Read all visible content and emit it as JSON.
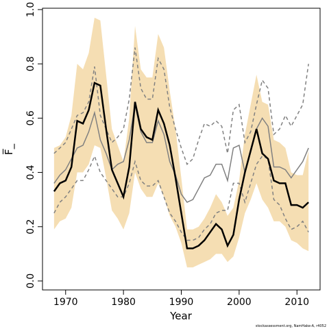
{
  "chart_data": {
    "type": "line",
    "x_label": "Year",
    "y_label": "F̅_",
    "footnote": "stockassessment.org, NamHake-A, r4052",
    "x": [
      1968,
      1969,
      1970,
      1971,
      1972,
      1973,
      1974,
      1975,
      1976,
      1977,
      1978,
      1979,
      1980,
      1981,
      1982,
      1983,
      1984,
      1985,
      1986,
      1987,
      1988,
      1989,
      1990,
      1991,
      1992,
      1993,
      1994,
      1995,
      1996,
      1997,
      1998,
      1999,
      2000,
      2001,
      2002,
      2003,
      2004,
      2005,
      2006,
      2007,
      2008,
      2009,
      2010,
      2011,
      2012
    ],
    "band": {
      "color": "#f5deb3",
      "upper": [
        0.49,
        0.5,
        0.53,
        0.61,
        0.8,
        0.78,
        0.84,
        0.97,
        0.96,
        0.76,
        0.56,
        0.5,
        0.44,
        0.6,
        0.94,
        0.78,
        0.75,
        0.75,
        0.91,
        0.86,
        0.7,
        0.56,
        0.38,
        0.19,
        0.19,
        0.2,
        0.23,
        0.27,
        0.32,
        0.29,
        0.24,
        0.27,
        0.37,
        0.54,
        0.65,
        0.76,
        0.66,
        0.65,
        0.52,
        0.51,
        0.49,
        0.4,
        0.39,
        0.39,
        0.48
      ],
      "lower": [
        0.19,
        0.22,
        0.23,
        0.27,
        0.4,
        0.4,
        0.43,
        0.5,
        0.49,
        0.38,
        0.26,
        0.23,
        0.19,
        0.25,
        0.4,
        0.34,
        0.31,
        0.31,
        0.36,
        0.31,
        0.24,
        0.2,
        0.14,
        0.05,
        0.05,
        0.06,
        0.07,
        0.08,
        0.1,
        0.1,
        0.07,
        0.09,
        0.16,
        0.25,
        0.3,
        0.36,
        0.3,
        0.27,
        0.22,
        0.22,
        0.2,
        0.15,
        0.14,
        0.12,
        0.11
      ]
    },
    "series": [
      {
        "color": "#808080",
        "width": 1.5,
        "dashed": true,
        "values": [
          0.47,
          0.49,
          0.51,
          0.56,
          0.61,
          0.62,
          0.66,
          0.79,
          0.61,
          0.56,
          0.51,
          0.53,
          0.56,
          0.67,
          0.86,
          0.71,
          0.67,
          0.67,
          0.82,
          0.78,
          0.64,
          0.56,
          0.49,
          0.43,
          0.45,
          0.52,
          0.58,
          0.57,
          0.59,
          0.57,
          0.47,
          0.63,
          0.65,
          0.51,
          0.55,
          0.65,
          0.74,
          0.71,
          0.54,
          0.56,
          0.61,
          0.57,
          0.61,
          0.65,
          0.8
        ]
      },
      {
        "color": "#808080",
        "width": 1.5,
        "dashed": true,
        "values": [
          0.25,
          0.29,
          0.31,
          0.34,
          0.37,
          0.37,
          0.41,
          0.46,
          0.4,
          0.37,
          0.34,
          0.31,
          0.31,
          0.36,
          0.44,
          0.37,
          0.35,
          0.35,
          0.37,
          0.31,
          0.25,
          0.22,
          0.18,
          0.15,
          0.15,
          0.16,
          0.19,
          0.21,
          0.25,
          0.26,
          0.26,
          0.36,
          0.36,
          0.29,
          0.36,
          0.43,
          0.46,
          0.45,
          0.3,
          0.28,
          0.23,
          0.19,
          0.2,
          0.22,
          0.18
        ]
      },
      {
        "color": "#808080",
        "width": 1.5,
        "dashed": false,
        "values": [
          0.36,
          0.39,
          0.41,
          0.45,
          0.49,
          0.5,
          0.55,
          0.62,
          0.52,
          0.47,
          0.41,
          0.43,
          0.44,
          0.52,
          0.65,
          0.55,
          0.51,
          0.51,
          0.59,
          0.54,
          0.44,
          0.39,
          0.32,
          0.29,
          0.3,
          0.34,
          0.38,
          0.39,
          0.43,
          0.43,
          0.37,
          0.49,
          0.5,
          0.4,
          0.48,
          0.56,
          0.6,
          0.57,
          0.42,
          0.42,
          0.41,
          0.38,
          0.41,
          0.44,
          0.49
        ]
      },
      {
        "color": "#000000",
        "width": 2.5,
        "dashed": false,
        "values": [
          0.33,
          0.36,
          0.37,
          0.42,
          0.59,
          0.58,
          0.63,
          0.73,
          0.72,
          0.56,
          0.41,
          0.36,
          0.31,
          0.42,
          0.66,
          0.56,
          0.53,
          0.52,
          0.63,
          0.58,
          0.5,
          0.38,
          0.25,
          0.12,
          0.12,
          0.13,
          0.15,
          0.18,
          0.21,
          0.19,
          0.13,
          0.17,
          0.3,
          0.4,
          0.48,
          0.56,
          0.47,
          0.45,
          0.37,
          0.36,
          0.36,
          0.28,
          0.28,
          0.27,
          0.29
        ]
      }
    ],
    "xlim": [
      1966,
      2014
    ],
    "xticks": [
      1970,
      1980,
      1990,
      2000,
      2010
    ],
    "ylim": [
      -0.033,
      1.005
    ],
    "yticks": [
      {
        "value": 0,
        "label": "0.0"
      },
      0.2,
      0.4,
      0.6,
      0.8,
      {
        "value": 1,
        "label": "1.0"
      }
    ]
  }
}
